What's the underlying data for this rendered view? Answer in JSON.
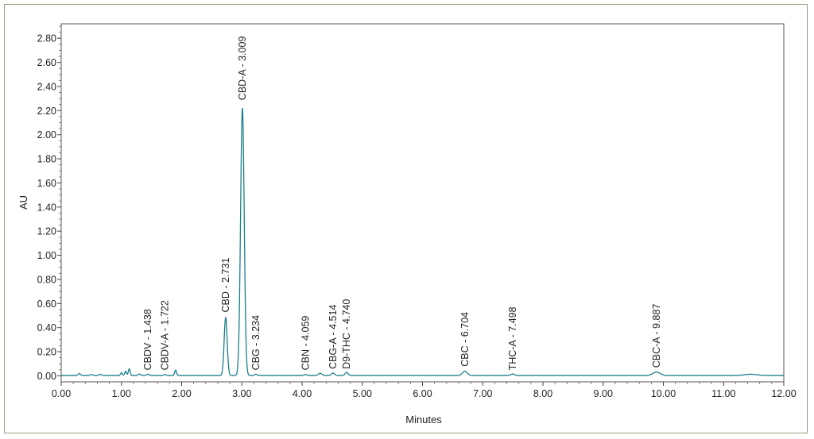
{
  "chart_data": {
    "type": "line",
    "title": "",
    "xlabel": "Minutes",
    "ylabel": "AU",
    "xlim": [
      0,
      12
    ],
    "ylim": [
      -0.05,
      2.92
    ],
    "x_ticks": [
      0,
      1,
      2,
      3,
      4,
      5,
      6,
      7,
      8,
      9,
      10,
      11,
      12
    ],
    "x_tick_labels": [
      "0.00",
      "1.00",
      "2.00",
      "3.00",
      "4.00",
      "5.00",
      "6.00",
      "7.00",
      "8.00",
      "9.00",
      "10.00",
      "11.00",
      "12.00"
    ],
    "y_ticks": [
      0,
      0.2,
      0.4,
      0.6,
      0.8,
      1.0,
      1.2,
      1.4,
      1.6,
      1.8,
      2.0,
      2.2,
      2.4,
      2.6,
      2.8
    ],
    "y_tick_labels": [
      "0.00",
      "0.20",
      "0.40",
      "0.60",
      "0.80",
      "1.00",
      "1.20",
      "1.40",
      "1.60",
      "1.80",
      "2.00",
      "2.20",
      "2.40",
      "2.60",
      "2.80"
    ],
    "grid": false,
    "line_color": "#1a7f8c",
    "baseline": 0.003,
    "peaks": [
      {
        "rt": 0.3,
        "height": 0.015,
        "width": 0.02
      },
      {
        "rt": 0.5,
        "height": 0.008,
        "width": 0.02
      },
      {
        "rt": 0.65,
        "height": 0.01,
        "width": 0.02
      },
      {
        "rt": 1.0,
        "height": 0.022,
        "width": 0.015
      },
      {
        "rt": 1.07,
        "height": 0.035,
        "width": 0.015
      },
      {
        "rt": 1.13,
        "height": 0.055,
        "width": 0.015
      },
      {
        "rt": 1.3,
        "height": 0.012,
        "width": 0.02
      },
      {
        "rt": 1.438,
        "height": 0.01,
        "width": 0.02
      },
      {
        "rt": 1.722,
        "height": 0.008,
        "width": 0.02
      },
      {
        "rt": 1.9,
        "height": 0.045,
        "width": 0.015
      },
      {
        "rt": 2.731,
        "height": 0.48,
        "width": 0.025
      },
      {
        "rt": 3.009,
        "height": 2.22,
        "width": 0.03
      },
      {
        "rt": 3.234,
        "height": 0.01,
        "width": 0.02
      },
      {
        "rt": 4.059,
        "height": 0.008,
        "width": 0.02
      },
      {
        "rt": 4.3,
        "height": 0.018,
        "width": 0.03
      },
      {
        "rt": 4.514,
        "height": 0.02,
        "width": 0.025
      },
      {
        "rt": 4.74,
        "height": 0.025,
        "width": 0.025
      },
      {
        "rt": 6.704,
        "height": 0.035,
        "width": 0.04
      },
      {
        "rt": 7.498,
        "height": 0.012,
        "width": 0.03
      },
      {
        "rt": 9.887,
        "height": 0.028,
        "width": 0.06
      },
      {
        "rt": 11.45,
        "height": 0.01,
        "width": 0.1
      }
    ],
    "peak_labels": [
      {
        "text": "CBDV - 1.438",
        "rt": 1.438,
        "level": 0.02
      },
      {
        "text": "CBDV-A - 1.722",
        "rt": 1.722,
        "level": 0.02
      },
      {
        "text": "CBD - 2.731",
        "rt": 2.731,
        "level": 0.5
      },
      {
        "text": "CBD-A - 3.009",
        "rt": 3.009,
        "level": 2.26
      },
      {
        "text": "CBG - 3.234",
        "rt": 3.234,
        "level": 0.02
      },
      {
        "text": "CBN - 4.059",
        "rt": 4.059,
        "level": 0.02
      },
      {
        "text": "CBG-A - 4.514",
        "rt": 4.514,
        "level": 0.03
      },
      {
        "text": "D9-THC - 4.740",
        "rt": 4.74,
        "level": 0.03
      },
      {
        "text": "CBC - 6.704",
        "rt": 6.704,
        "level": 0.05
      },
      {
        "text": "THC-A - 7.498",
        "rt": 7.498,
        "level": 0.02
      },
      {
        "text": "CBC-A - 9.887",
        "rt": 9.887,
        "level": 0.04
      }
    ]
  }
}
